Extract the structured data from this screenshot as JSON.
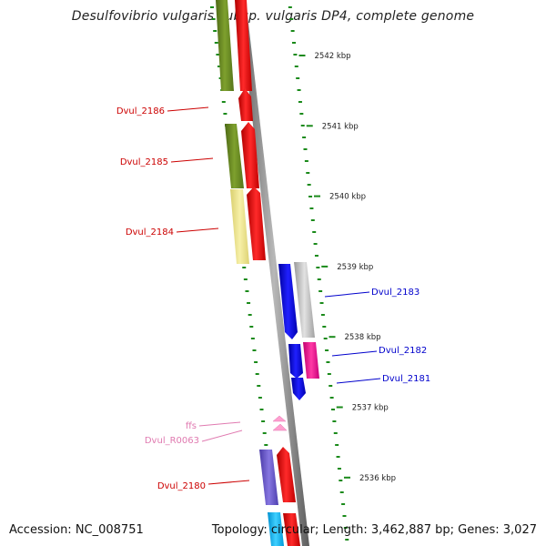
{
  "title": "Desulfovibrio vulgaris subsp. vulgaris DP4, complete genome",
  "footer": {
    "accession": "Accession: NC_008751",
    "topology": "Topology: circular; Length: 3,462,887 bp; Genes: 3,027"
  },
  "colors": {
    "gc_ticks": "#1a8a1a",
    "backbone": "#8a8a8a",
    "label_left_strand": "#cc0000",
    "label_right_strand": "#0000cc",
    "label_rna": "#e07ab0"
  },
  "scale_labels": [
    "2542 kbp",
    "2541 kbp",
    "2540 kbp",
    "2539 kbp",
    "2538 kbp",
    "2537 kbp",
    "2536 kbp"
  ],
  "gene_labels_left": [
    "Dvul_2186",
    "Dvul_2185",
    "Dvul_2184",
    "Dvul_2180"
  ],
  "gene_labels_right": [
    "Dvul_2183",
    "Dvul_2182",
    "Dvul_2181"
  ],
  "rna_labels": [
    "ffs",
    "Dvul_R0063"
  ],
  "features": [
    {
      "name": "cog-olive",
      "color": "#6b8e23"
    },
    {
      "name": "cog-yellow",
      "color": "#eee58a"
    },
    {
      "name": "cds-red",
      "color": "#ff0000"
    },
    {
      "name": "cds-blue",
      "color": "#0000ee"
    },
    {
      "name": "cog-grey",
      "color": "#c8c8c8"
    },
    {
      "name": "cog-magenta",
      "color": "#ff1493"
    },
    {
      "name": "cog-purple",
      "color": "#6a5acd"
    },
    {
      "name": "cog-cyan",
      "color": "#00bfff"
    },
    {
      "name": "rna-pink",
      "color": "#ff9fcf"
    }
  ]
}
